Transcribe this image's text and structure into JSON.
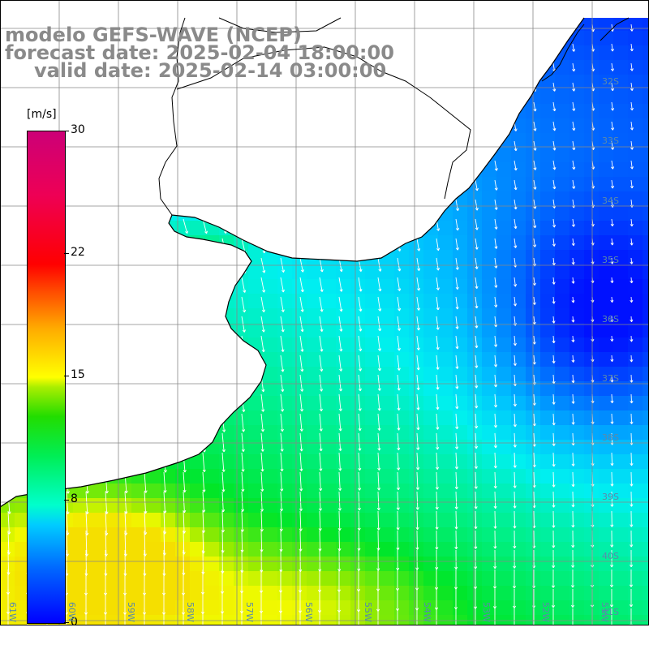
{
  "header": {
    "line1": "modelo GEFS-WAVE (NCEP)",
    "line2": "forecast date: 2025-02-04 18:00:00",
    "line3": "valid date: 2025-02-14 03:00:00"
  },
  "colorbar": {
    "unit": "[m/s]",
    "ticks": [
      {
        "label": "30",
        "value": 30
      },
      {
        "label": "22",
        "value": 22
      },
      {
        "label": "15",
        "value": 15
      },
      {
        "label": "8",
        "value": 8
      },
      {
        "label": "0",
        "value": 0
      }
    ],
    "colors": [
      "#0000ff",
      "#00ccff",
      "#00ffcc",
      "#22dd00",
      "#ffff00",
      "#ffaa00",
      "#ff0000",
      "#cc0077"
    ]
  },
  "axes": {
    "lat_labels": [
      "32S",
      "33S",
      "34S",
      "35S",
      "36S",
      "37S",
      "38S",
      "39S",
      "40S",
      "41S"
    ],
    "lon_labels": [
      "61W",
      "60W",
      "59W",
      "58W",
      "57W",
      "56W",
      "55W",
      "54W",
      "53W",
      "52W",
      "51W"
    ]
  },
  "colors": {
    "land": "#ffffff",
    "grid": "#888888",
    "coast": "#000000",
    "arrows": "#ffffff",
    "axis_label": "#5a8aaa",
    "title": "#8a8a8a"
  }
}
